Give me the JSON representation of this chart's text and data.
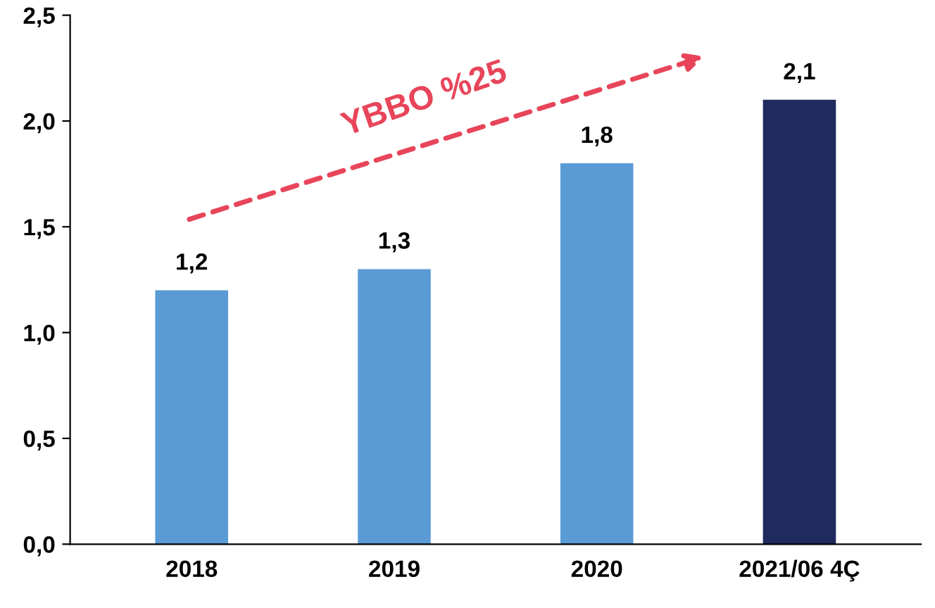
{
  "chart_data": {
    "type": "bar",
    "categories": [
      "2018",
      "2019",
      "2020",
      "2021/06 4Ç"
    ],
    "values": [
      1.2,
      1.3,
      1.8,
      2.1
    ],
    "value_labels": [
      "1,2",
      "1,3",
      "1,8",
      "2,1"
    ],
    "colors": [
      "#5b9bd5",
      "#5b9bd5",
      "#5b9bd5",
      "#1f2a5e"
    ],
    "ylim": [
      0,
      2.5
    ],
    "yticks": [
      {
        "value": 0,
        "label": "0,0"
      },
      {
        "value": 0.5,
        "label": "0,5"
      },
      {
        "value": 1.0,
        "label": "1,0"
      },
      {
        "value": 1.5,
        "label": "1,5"
      },
      {
        "value": 2.0,
        "label": "2,0"
      },
      {
        "value": 2.5,
        "label": "2,5"
      }
    ],
    "annotations": [
      "YBBO %25"
    ],
    "grid": false,
    "legend": false
  }
}
